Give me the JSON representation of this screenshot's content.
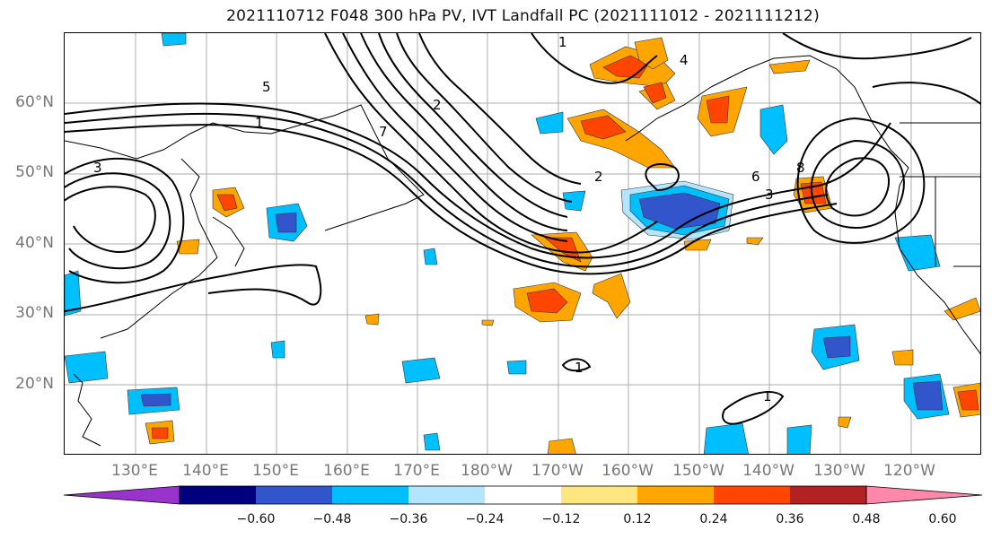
{
  "title": "2021110712 F048 300 hPa PV, IVT Landfall PC (2021111012 - 2021111212)",
  "lat_labels": [
    "60°N",
    "50°N",
    "40°N",
    "30°N",
    "20°N"
  ],
  "lon_labels": [
    "130°E",
    "140°E",
    "150°E",
    "160°E",
    "170°E",
    "180°W",
    "170°W",
    "160°W",
    "150°W",
    "140°W",
    "130°W",
    "120°W"
  ],
  "colorbar": {
    "colors": [
      "#9933cc",
      "#00007f",
      "#3355cc",
      "#00bfff",
      "#b3e5ff",
      "#ffffff",
      "#ffe680",
      "#ffa500",
      "#ff4500",
      "#b22222",
      "#ff88aa"
    ],
    "ticks": [
      "−0.60",
      "−0.48",
      "−0.36",
      "−0.24",
      "−0.12",
      "0.12",
      "0.24",
      "0.36",
      "0.48",
      "0.60"
    ]
  },
  "contour_labels": [
    "1",
    "2",
    "3",
    "4",
    "5",
    "6",
    "7",
    "8"
  ]
}
